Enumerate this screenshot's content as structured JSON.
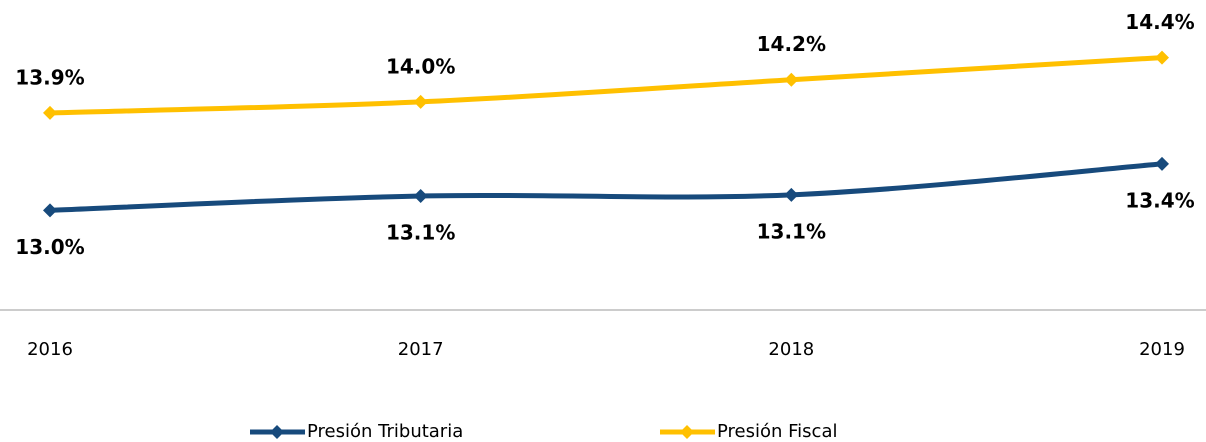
{
  "chart_data": {
    "type": "line",
    "categories": [
      "2016",
      "2017",
      "2018",
      "2019"
    ],
    "series": [
      {
        "name": "Presión Tributaria",
        "color": "#174a7c",
        "values": [
          13.0,
          13.13,
          13.14,
          13.42
        ],
        "value_labels": [
          "13.0%",
          "13.1%",
          "13.1%",
          "13.4%"
        ]
      },
      {
        "name": "Presión Fiscal",
        "color": "#ffc000",
        "values": [
          13.88,
          13.98,
          14.18,
          14.38
        ],
        "value_labels": [
          "13.9%",
          "14.0%",
          "14.2%",
          "14.4%"
        ]
      }
    ],
    "ylim": [
      12.1,
      14.9
    ],
    "legend": "bottom"
  }
}
